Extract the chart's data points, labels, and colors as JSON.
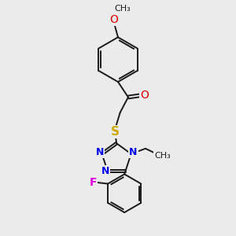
{
  "background_color": "#ebebeb",
  "bond_color": "#1a1a1a",
  "bond_width": 1.4,
  "atom_colors": {
    "O": "#dd0000",
    "N": "#0000ee",
    "S": "#ccaa00",
    "F": "#dd00dd",
    "C": "#1a1a1a"
  },
  "font_size": 9,
  "dbo": 0.055
}
